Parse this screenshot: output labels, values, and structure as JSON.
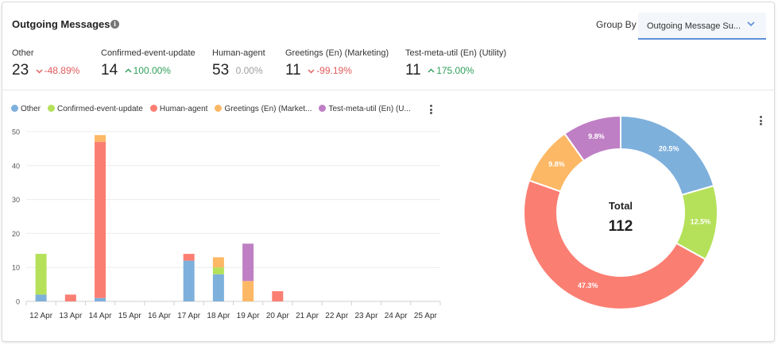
{
  "header": {
    "title": "Outgoing Messages",
    "group_by_label": "Group By",
    "group_by_value": "Outgoing Message Su..."
  },
  "stats": [
    {
      "label": "Other",
      "value": "23",
      "change": "-48.89%",
      "trend": "down"
    },
    {
      "label": "Confirmed-event-update",
      "value": "14",
      "change": "100.00%",
      "trend": "up"
    },
    {
      "label": "Human-agent",
      "value": "53",
      "change": "0.00%",
      "trend": "flat"
    },
    {
      "label": "Greetings (En) (Marketing)",
      "value": "11",
      "change": "-99.19%",
      "trend": "down"
    },
    {
      "label": "Test-meta-util (En) (Utility)",
      "value": "11",
      "change": "175.00%",
      "trend": "up"
    }
  ],
  "colors": {
    "down": "#e05a5a",
    "up": "#2e9e5b",
    "flat": "#9e9e9e",
    "accent": "#5b8fd6"
  },
  "icons": {
    "info": "info-icon",
    "dropdown": "chevron-down-icon",
    "menu": "more-vertical-icon"
  },
  "chart_data": [
    {
      "type": "bar",
      "stacked": true,
      "categories": [
        "12 Apr",
        "13 Apr",
        "14 Apr",
        "15 Apr",
        "16 Apr",
        "17 Apr",
        "18 Apr",
        "19 Apr",
        "20 Apr",
        "21 Apr",
        "22 Apr",
        "23 Apr",
        "24 Apr",
        "25 Apr"
      ],
      "legend_labels": [
        "Other",
        "Confirmed-event-update",
        "Human-agent",
        "Greetings (En) (Market...",
        "Test-meta-util (En) (U..."
      ],
      "series": [
        {
          "name": "Other",
          "color": "#7eb0dc",
          "values": [
            2,
            0,
            1,
            0,
            0,
            12,
            8,
            0,
            0,
            0,
            0,
            0,
            0,
            0
          ]
        },
        {
          "name": "Confirmed-event-update",
          "color": "#b5e15a",
          "values": [
            12,
            0,
            0,
            0,
            0,
            0,
            2,
            0,
            0,
            0,
            0,
            0,
            0,
            0
          ]
        },
        {
          "name": "Human-agent",
          "color": "#fb7e72",
          "values": [
            0,
            2,
            46,
            0,
            0,
            2,
            0,
            0,
            3,
            0,
            0,
            0,
            0,
            0
          ]
        },
        {
          "name": "Greetings (En) (Marketing)",
          "color": "#fdb865",
          "values": [
            0,
            0,
            2,
            0,
            0,
            0,
            3,
            6,
            0,
            0,
            0,
            0,
            0,
            0
          ]
        },
        {
          "name": "Test-meta-util (En) (Utility)",
          "color": "#bf7fc4",
          "values": [
            0,
            0,
            0,
            0,
            0,
            0,
            0,
            11,
            0,
            0,
            0,
            0,
            0,
            0
          ]
        }
      ],
      "yticks": [
        0,
        10,
        20,
        30,
        40,
        50
      ],
      "ylim": [
        0,
        50
      ],
      "grid": true,
      "legend_position": "top-left"
    },
    {
      "type": "pie",
      "donut": true,
      "center_label": "Total",
      "center_value": "112",
      "slices": [
        {
          "name": "Other",
          "value": 20.5,
          "label": "20.5%",
          "color": "#7eb0dc"
        },
        {
          "name": "Confirmed-event-update",
          "value": 12.5,
          "label": "12.5%",
          "color": "#b5e15a"
        },
        {
          "name": "Human-agent",
          "value": 47.3,
          "label": "47.3%",
          "color": "#fb7e72"
        },
        {
          "name": "Greetings (En) (Marketing)",
          "value": 9.8,
          "label": "9.8%",
          "color": "#fdb865"
        },
        {
          "name": "Test-meta-util (En) (Utility)",
          "value": 9.8,
          "label": "9.8%",
          "color": "#bf7fc4"
        }
      ]
    }
  ]
}
